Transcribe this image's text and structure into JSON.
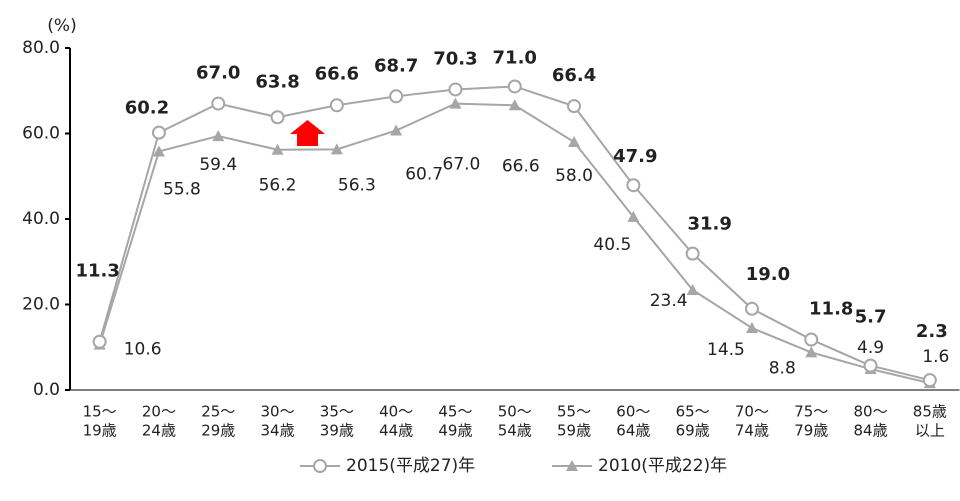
{
  "chart_data": {
    "type": "line",
    "ylabel": "(%)",
    "categories": [
      [
        "15～",
        "19歳"
      ],
      [
        "20～",
        "24歳"
      ],
      [
        "25～",
        "29歳"
      ],
      [
        "30～",
        "34歳"
      ],
      [
        "35～",
        "39歳"
      ],
      [
        "40～",
        "44歳"
      ],
      [
        "45～",
        "49歳"
      ],
      [
        "50～",
        "54歳"
      ],
      [
        "55～",
        "59歳"
      ],
      [
        "60～",
        "64歳"
      ],
      [
        "65～",
        "69歳"
      ],
      [
        "70～",
        "74歳"
      ],
      [
        "75～",
        "79歳"
      ],
      [
        "80～",
        "84歳"
      ],
      [
        "85歳",
        "以上"
      ]
    ],
    "series": [
      {
        "name": "2015(平成27)年",
        "color": "#a6a6a6",
        "marker": "circle",
        "values": [
          11.3,
          60.2,
          67,
          63.8,
          66.6,
          68.7,
          70.3,
          71,
          66.4,
          47.9,
          31.9,
          19,
          11.8,
          5.7,
          2.3
        ],
        "value_labels": [
          "11.3",
          "60.2",
          "67.0",
          "63.8",
          "66.6",
          "68.7",
          "70.3",
          "71.0",
          "66.4",
          "47.9",
          "31.9",
          "19.0",
          "11.8",
          "5.7",
          "2.3"
        ]
      },
      {
        "name": "2010(平成22)年",
        "color": "#a6a6a6",
        "marker": "triangle",
        "values": [
          10.6,
          55.8,
          59.4,
          56.2,
          56.3,
          60.7,
          67,
          66.6,
          58,
          40.5,
          23.4,
          14.5,
          8.8,
          4.9,
          1.6
        ],
        "value_labels": [
          "10.6",
          "55.8",
          "59.4",
          "56.2",
          "56.3",
          "60.7",
          "67.0",
          "66.6",
          "58.0",
          "40.5",
          "23.4",
          "14.5",
          "8.8",
          "4.9",
          "1.6"
        ]
      }
    ],
    "ylim": [
      0,
      80
    ],
    "yticks": [
      {
        "value": 0,
        "label": "0.0"
      },
      {
        "value": 20,
        "label": "20.0"
      },
      {
        "value": 40,
        "label": "40.0"
      },
      {
        "value": 60,
        "label": "60.0"
      },
      {
        "value": 80,
        "label": "80.0"
      }
    ],
    "legend": "bottom"
  }
}
